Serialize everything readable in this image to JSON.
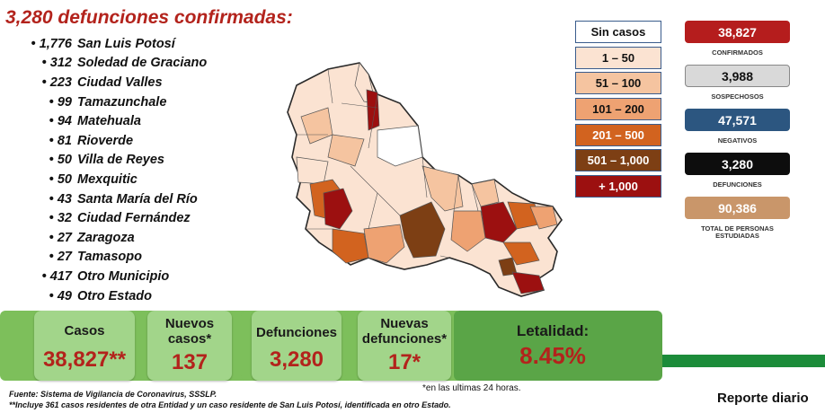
{
  "title": "3,280 defunciones confirmadas:",
  "municipalities": [
    {
      "count": "1,776",
      "name": "San Luis Potosí"
    },
    {
      "count": "312",
      "name": "Soledad de Graciano"
    },
    {
      "count": "223",
      "name": "Ciudad Valles"
    },
    {
      "count": "99",
      "name": "Tamazunchale"
    },
    {
      "count": "94",
      "name": "Matehuala"
    },
    {
      "count": "81",
      "name": "Rioverde"
    },
    {
      "count": "50",
      "name": "Villa de Reyes"
    },
    {
      "count": "50",
      "name": "Mexquitic"
    },
    {
      "count": "43",
      "name": "Santa María del Río"
    },
    {
      "count": "32",
      "name": "Ciudad Fernández"
    },
    {
      "count": "27",
      "name": "Zaragoza"
    },
    {
      "count": "27",
      "name": "Tamasopo"
    },
    {
      "count": "417",
      "name": "Otro Municipio"
    },
    {
      "count": "49",
      "name": "Otro Estado"
    }
  ],
  "legend": [
    {
      "label": "Sin casos",
      "color": "#ffffff",
      "text": "#111111"
    },
    {
      "label": "1 – 50",
      "color": "#fbe3d2",
      "text": "#111111"
    },
    {
      "label": "51 – 100",
      "color": "#f5c4a0",
      "text": "#111111"
    },
    {
      "label": "101 – 200",
      "color": "#eea272",
      "text": "#111111"
    },
    {
      "label": "201 – 500",
      "color": "#d2631f",
      "text": "#ffffff"
    },
    {
      "label": "501 – 1,000",
      "color": "#7d3f14",
      "text": "#ffffff"
    },
    {
      "label": "+ 1,000",
      "color": "#9c1010",
      "text": "#ffffff"
    }
  ],
  "stats": [
    {
      "value": "38,827",
      "label": "CONFIRMADOS",
      "bg": "#b51d1d",
      "fg": "#ffffff"
    },
    {
      "value": "3,988",
      "label": "SOSPECHOSOS",
      "bg": "#d9d9d9",
      "fg": "#111111"
    },
    {
      "value": "47,571",
      "label": "NEGATIVOS",
      "bg": "#2c5680",
      "fg": "#ffffff"
    },
    {
      "value": "3,280",
      "label": "DEFUNCIONES",
      "bg": "#0d0d0d",
      "fg": "#ffffff"
    },
    {
      "value": "90,386",
      "label": "TOTAL DE PERSONAS ESTUDIADAS",
      "bg": "#c9966a",
      "fg": "#ffffff"
    }
  ],
  "cards": {
    "casos": {
      "label": "Casos",
      "value": "38,827**"
    },
    "nuevos_casos": {
      "label": "Nuevos casos*",
      "value": "137"
    },
    "defunciones": {
      "label": "Defunciones",
      "value": "3,280"
    },
    "nuevas_defunciones": {
      "label": "Nuevas defunciones*",
      "value": "17*"
    },
    "letalidad": {
      "label": "Letalidad:",
      "value": "8.45%"
    }
  },
  "note_24": "*en las ultimas 24 horas.",
  "footnote_1": "Fuente: Sistema de Vigilancia de Coronavirus, SSSLP.",
  "footnote_2": "**Incluye 361 casos residentes de otra Entidad y un caso residente de San Luis Potosí, identificada en otro Estado.",
  "report": "Reporte diario"
}
